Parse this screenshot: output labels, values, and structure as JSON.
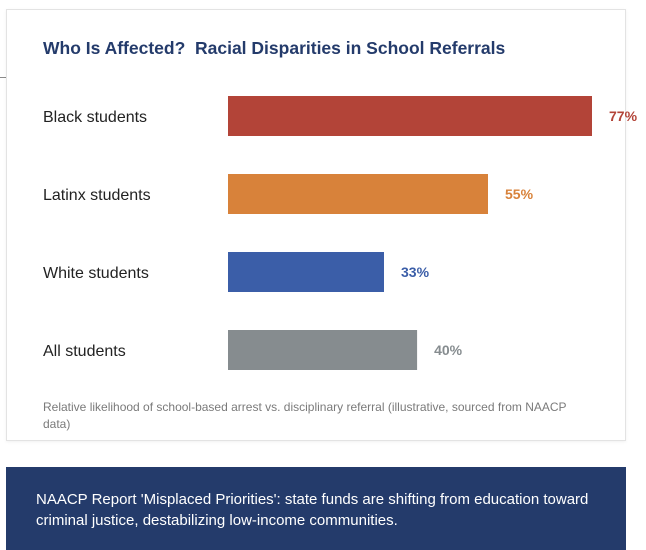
{
  "chart_data": {
    "type": "bar",
    "orientation": "horizontal",
    "title": "Who Is Affected?  Racial Disparities in School Referrals",
    "categories": [
      "Black students",
      "Latinx students",
      "White students",
      "All students"
    ],
    "values": [
      77,
      55,
      33,
      40
    ],
    "value_labels": [
      "77%",
      "55%",
      "33%",
      "40%"
    ],
    "colors": [
      "#b34438",
      "#d8823a",
      "#3b5ea8",
      "#868c8f"
    ],
    "xlim": [
      0,
      77
    ],
    "grid": false,
    "legend": "none",
    "caption": "Relative likelihood of school-based arrest vs. disciplinary referral (illustrative, sourced from NAACP data)"
  },
  "banner": {
    "text": "NAACP Report 'Misplaced Priorities': state funds are shifting from education toward criminal justice, destabilizing low-income communities."
  },
  "colors": {
    "title": "#243b6b",
    "banner_bg": "#243b6b"
  }
}
